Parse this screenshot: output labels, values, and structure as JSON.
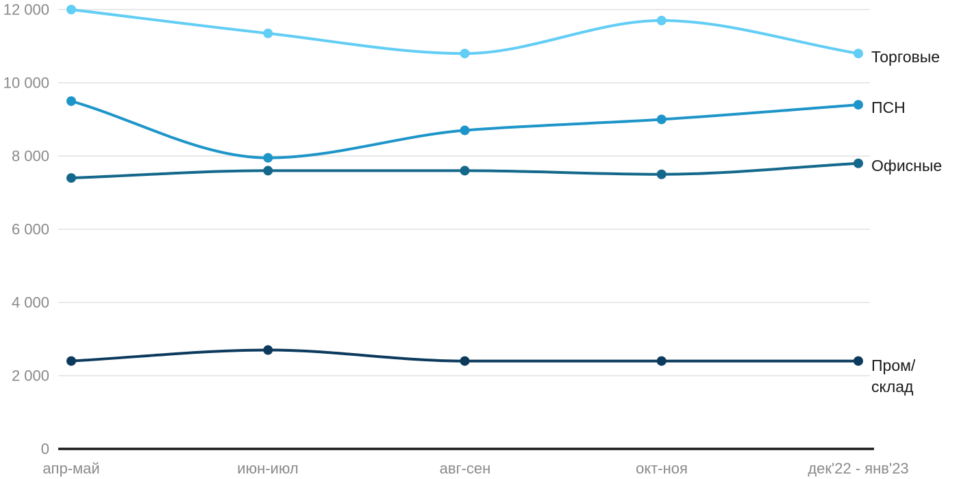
{
  "chart_data": {
    "type": "line",
    "title": "",
    "xlabel": "",
    "ylabel": "",
    "categories": [
      "апр-май",
      "июн-июл",
      "авг-сен",
      "окт-ноя",
      "дек'22 - янв'23"
    ],
    "series": [
      {
        "name": "Торговые",
        "label_lines": [
          "Торговые"
        ],
        "color": "#62CDF5",
        "values": [
          12000,
          11350,
          10800,
          11700,
          10800
        ]
      },
      {
        "name": "ПСН",
        "label_lines": [
          "ПСН"
        ],
        "color": "#1E95C9",
        "values": [
          9500,
          7950,
          8700,
          9000,
          9400
        ]
      },
      {
        "name": "Офисные",
        "label_lines": [
          "Офисные"
        ],
        "color": "#14688B",
        "values": [
          7400,
          7600,
          7600,
          7500,
          7800
        ]
      },
      {
        "name": "Пром/склад",
        "label_lines": [
          "Пром/",
          "склад"
        ],
        "color": "#0C3A5D",
        "values": [
          2400,
          2700,
          2400,
          2400,
          2400
        ]
      }
    ],
    "ylim": [
      0,
      12000
    ],
    "yticks": [
      12000,
      10000,
      8000,
      6000,
      4000,
      2000,
      0
    ],
    "ytick_labels": [
      "12 000",
      "10 000",
      "8 000",
      "6 000",
      "4 000",
      "2 000",
      "0"
    ],
    "grid": "horizontal",
    "legend_position": "direct-labels-right"
  },
  "style": {
    "grid_color": "#E9E9E9",
    "axis_color": "#1A1A1A",
    "tick_label_color": "#8A8A8A",
    "series_label_color": "#1A1A1A",
    "background": "#FFFFFF"
  }
}
